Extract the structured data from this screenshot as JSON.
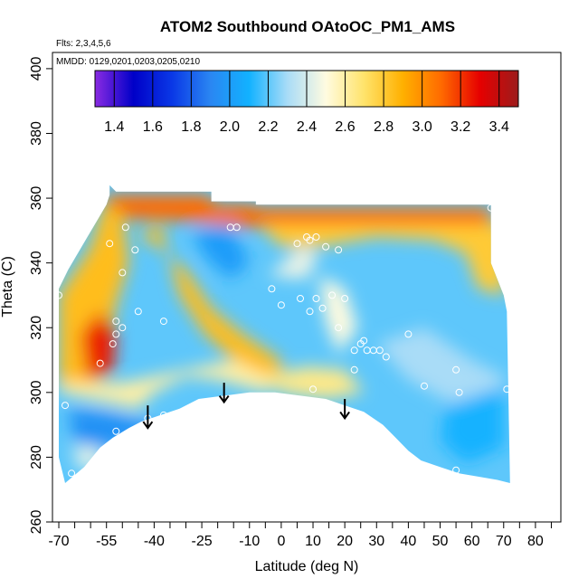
{
  "chart_data": {
    "type": "heatmap",
    "title": "ATOM2 Southbound OAtoOC_PM1_AMS",
    "subtitle_flights": "Flts: 2,3,4,5,6",
    "subtitle_dates": "MMDD: 0129,0201,0203,0205,0210",
    "xlabel": "Latitude (deg N)",
    "ylabel": "Theta (C)",
    "xlim": [
      -72,
      88
    ],
    "ylim": [
      260,
      405
    ],
    "xticks": [
      -70,
      -55,
      -40,
      -25,
      -10,
      0,
      10,
      20,
      30,
      40,
      50,
      60,
      70,
      80
    ],
    "xtick_labels": [
      "-70",
      "-55",
      "-40",
      "-25",
      "-10",
      "0",
      "10",
      "20",
      "30",
      "40",
      "50",
      "60",
      "70",
      "80"
    ],
    "xminor_ticks": [
      -65,
      -60,
      -50,
      -45,
      -35,
      -30,
      -20,
      -15,
      -5,
      5,
      15,
      25,
      35,
      45,
      55,
      65,
      75,
      85
    ],
    "yticks": [
      260,
      280,
      300,
      320,
      340,
      360,
      380,
      400
    ],
    "ytick_labels": [
      "260",
      "280",
      "300",
      "320",
      "340",
      "360",
      "380",
      "400"
    ],
    "colorbar": {
      "min": 1.3,
      "max": 3.5,
      "ticks": [
        1.4,
        1.6,
        1.8,
        2.0,
        2.2,
        2.4,
        2.6,
        2.8,
        3.0,
        3.2,
        3.4
      ],
      "tick_labels": [
        "1.4",
        "1.6",
        "1.8",
        "2.0",
        "2.2",
        "2.4",
        "2.6",
        "2.8",
        "3.0",
        "3.2",
        "3.4"
      ],
      "stops": [
        {
          "v": 1.3,
          "color": "#8a2be2"
        },
        {
          "v": 1.5,
          "color": "#0000c8"
        },
        {
          "v": 1.7,
          "color": "#0a38e6"
        },
        {
          "v": 1.9,
          "color": "#2a86f2"
        },
        {
          "v": 2.1,
          "color": "#12b2ff"
        },
        {
          "v": 2.3,
          "color": "#a9dcf7"
        },
        {
          "v": 2.5,
          "color": "#fffbe0"
        },
        {
          "v": 2.7,
          "color": "#ffe36a"
        },
        {
          "v": 2.9,
          "color": "#ffb000"
        },
        {
          "v": 3.1,
          "color": "#ff6a00"
        },
        {
          "v": 3.3,
          "color": "#e60000"
        },
        {
          "v": 3.5,
          "color": "#9c1c1c"
        }
      ]
    },
    "regions": [
      {
        "value": 3.1,
        "points": [
          [
            -55,
            361
          ],
          [
            -22,
            361
          ],
          [
            -22,
            358
          ],
          [
            -8,
            358
          ],
          [
            -8,
            357
          ],
          [
            66,
            357
          ],
          [
            66,
            351
          ],
          [
            -10,
            351
          ],
          [
            -30,
            353
          ],
          [
            -55,
            354
          ]
        ]
      },
      {
        "value": 2.85,
        "points": [
          [
            -70,
            330
          ],
          [
            -60,
            345
          ],
          [
            -56,
            358
          ],
          [
            -50,
            356
          ],
          [
            -48,
            340
          ],
          [
            -52,
            327
          ],
          [
            -55,
            310
          ],
          [
            -58,
            303
          ],
          [
            -70,
            300
          ]
        ]
      },
      {
        "value": 3.25,
        "points": [
          [
            -63,
            318
          ],
          [
            -57,
            325
          ],
          [
            -52,
            318
          ],
          [
            -53,
            306
          ],
          [
            -61,
            304
          ]
        ]
      },
      {
        "value": 2.85,
        "points": [
          [
            -45,
            348
          ],
          [
            -38,
            352
          ],
          [
            -32,
            330
          ],
          [
            -24,
            318
          ],
          [
            -15,
            310
          ],
          [
            0,
            303
          ],
          [
            0,
            310
          ],
          [
            -12,
            318
          ],
          [
            -22,
            326
          ],
          [
            -30,
            338
          ],
          [
            -40,
            346
          ]
        ]
      },
      {
        "value": 2.6,
        "points": [
          [
            -70,
            300
          ],
          [
            -55,
            297
          ],
          [
            -45,
            295
          ],
          [
            -40,
            300
          ],
          [
            -30,
            305
          ],
          [
            -20,
            304
          ],
          [
            -5,
            300
          ],
          [
            0,
            303
          ],
          [
            -15,
            310
          ],
          [
            -35,
            306
          ],
          [
            -50,
            303
          ],
          [
            -70,
            303
          ]
        ]
      },
      {
        "value": 2.8,
        "points": [
          [
            -7,
            352
          ],
          [
            0,
            345
          ],
          [
            12,
            345
          ],
          [
            30,
            348
          ],
          [
            48,
            347
          ],
          [
            58,
            343
          ],
          [
            62,
            332
          ],
          [
            70,
            330
          ],
          [
            71,
            352
          ],
          [
            60,
            352
          ],
          [
            40,
            352
          ],
          [
            10,
            352
          ]
        ]
      },
      {
        "value": 2.45,
        "points": [
          [
            -4,
            336
          ],
          [
            6,
            345
          ],
          [
            12,
            343
          ],
          [
            8,
            335
          ]
        ]
      },
      {
        "value": 2.5,
        "points": [
          [
            12,
            336
          ],
          [
            20,
            332
          ],
          [
            24,
            320
          ],
          [
            18,
            312
          ],
          [
            14,
            322
          ]
        ]
      },
      {
        "value": 2.3,
        "points": [
          [
            30,
            315
          ],
          [
            45,
            320
          ],
          [
            60,
            310
          ],
          [
            70,
            305
          ],
          [
            70,
            298
          ],
          [
            55,
            296
          ],
          [
            40,
            304
          ]
        ]
      },
      {
        "value": 2.65,
        "points": [
          [
            -5,
            305
          ],
          [
            8,
            308
          ],
          [
            20,
            307
          ],
          [
            26,
            300
          ],
          [
            14,
            298
          ],
          [
            0,
            300
          ]
        ]
      },
      {
        "value": 2.0,
        "points": [
          [
            -28,
            350
          ],
          [
            -16,
            352
          ],
          [
            -10,
            340
          ],
          [
            -16,
            335
          ],
          [
            -24,
            342
          ]
        ]
      },
      {
        "value": 1.95,
        "points": [
          [
            -67,
            295
          ],
          [
            -55,
            294
          ],
          [
            -42,
            291
          ],
          [
            -38,
            289
          ],
          [
            -45,
            286
          ],
          [
            -55,
            283
          ],
          [
            -65,
            285
          ]
        ]
      },
      {
        "value": 2.1,
        "points": [
          [
            52,
            296
          ],
          [
            70,
            302
          ],
          [
            70,
            283
          ],
          [
            58,
            278
          ],
          [
            50,
            285
          ]
        ]
      },
      {
        "value": 2.45,
        "points": [
          [
            -66,
            283
          ],
          [
            -58,
            283
          ],
          [
            -56,
            278
          ],
          [
            -63,
            276
          ]
        ]
      }
    ],
    "points": [
      {
        "x": -54,
        "y": 346
      },
      {
        "x": -49,
        "y": 351
      },
      {
        "x": -46,
        "y": 344
      },
      {
        "x": -50,
        "y": 337
      },
      {
        "x": -45,
        "y": 325
      },
      {
        "x": -37,
        "y": 322
      },
      {
        "x": -52,
        "y": 322
      },
      {
        "x": -50,
        "y": 320
      },
      {
        "x": -52,
        "y": 318
      },
      {
        "x": -53,
        "y": 315
      },
      {
        "x": -57,
        "y": 309
      },
      {
        "x": -68,
        "y": 296
      },
      {
        "x": -70,
        "y": 330
      },
      {
        "x": -42,
        "y": 292
      },
      {
        "x": -37,
        "y": 293
      },
      {
        "x": -52,
        "y": 288
      },
      {
        "x": -66,
        "y": 275
      },
      {
        "x": -16,
        "y": 351
      },
      {
        "x": -14,
        "y": 351
      },
      {
        "x": -3,
        "y": 332
      },
      {
        "x": 0,
        "y": 327
      },
      {
        "x": 5,
        "y": 346
      },
      {
        "x": 8,
        "y": 348
      },
      {
        "x": 9,
        "y": 347
      },
      {
        "x": 11,
        "y": 348
      },
      {
        "x": 14,
        "y": 345
      },
      {
        "x": 18,
        "y": 344
      },
      {
        "x": 6,
        "y": 329
      },
      {
        "x": 9,
        "y": 325
      },
      {
        "x": 11,
        "y": 329
      },
      {
        "x": 13,
        "y": 326
      },
      {
        "x": 16,
        "y": 330
      },
      {
        "x": 18,
        "y": 320
      },
      {
        "x": 20,
        "y": 329
      },
      {
        "x": 23,
        "y": 313
      },
      {
        "x": 25,
        "y": 315
      },
      {
        "x": 27,
        "y": 313
      },
      {
        "x": 29,
        "y": 313
      },
      {
        "x": 26,
        "y": 316
      },
      {
        "x": 31,
        "y": 313
      },
      {
        "x": 33,
        "y": 311
      },
      {
        "x": 23,
        "y": 307
      },
      {
        "x": 40,
        "y": 318
      },
      {
        "x": 45,
        "y": 302
      },
      {
        "x": 55,
        "y": 307
      },
      {
        "x": 56,
        "y": 300
      },
      {
        "x": 55,
        "y": 276
      },
      {
        "x": 66,
        "y": 357
      },
      {
        "x": 71,
        "y": 301
      },
      {
        "x": 10,
        "y": 301
      }
    ],
    "arrows": [
      {
        "x": -42,
        "y_top": 296,
        "y_bottom": 289
      },
      {
        "x": -18,
        "y_top": 303,
        "y_bottom": 297
      },
      {
        "x": 20,
        "y_top": 298,
        "y_bottom": 292
      }
    ],
    "ground": [
      [
        -72,
        260
      ],
      [
        -72,
        272
      ],
      [
        -68,
        272
      ],
      [
        -62,
        277
      ],
      [
        -57,
        283
      ],
      [
        -53,
        286
      ],
      [
        -48,
        289
      ],
      [
        -44,
        291
      ],
      [
        -38,
        293
      ],
      [
        -32,
        295
      ],
      [
        -26,
        298
      ],
      [
        -18,
        299
      ],
      [
        -10,
        300
      ],
      [
        -2,
        300
      ],
      [
        6,
        299
      ],
      [
        14,
        298
      ],
      [
        20,
        296
      ],
      [
        26,
        294
      ],
      [
        32,
        290
      ],
      [
        36,
        286
      ],
      [
        40,
        282
      ],
      [
        44,
        279
      ],
      [
        50,
        277
      ],
      [
        56,
        275
      ],
      [
        62,
        274
      ],
      [
        68,
        273
      ],
      [
        72,
        272
      ],
      [
        72,
        260
      ]
    ],
    "data_envelope": [
      [
        -70,
        300
      ],
      [
        -70,
        332
      ],
      [
        -67,
        338
      ],
      [
        -64,
        343
      ],
      [
        -61,
        348
      ],
      [
        -58,
        353
      ],
      [
        -55,
        358
      ],
      [
        -54,
        361
      ],
      [
        -54,
        364
      ],
      [
        -52,
        362
      ],
      [
        -22,
        362
      ],
      [
        -22,
        359
      ],
      [
        -8,
        359
      ],
      [
        -8,
        358
      ],
      [
        66,
        358
      ],
      [
        66,
        340
      ],
      [
        70,
        330
      ],
      [
        71,
        325
      ],
      [
        72,
        272
      ],
      [
        -68,
        272
      ],
      [
        -70,
        280
      ]
    ]
  }
}
